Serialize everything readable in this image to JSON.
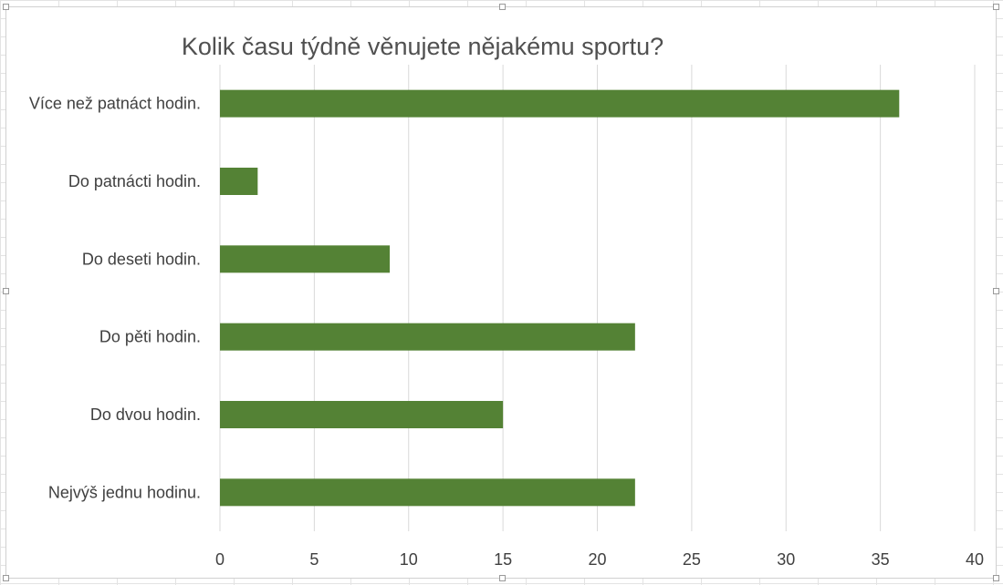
{
  "chart_data": {
    "type": "bar",
    "orientation": "horizontal",
    "title": "Kolik času týdně věnujete nějakému sportu?",
    "categories": [
      "Více než patnáct hodin.",
      "Do patnácti hodin.",
      "Do deseti hodin.",
      "Do pěti hodin.",
      "Do dvou hodin.",
      "Nejvýš jednu hodinu."
    ],
    "values": [
      36,
      2,
      9,
      22,
      15,
      22
    ],
    "xlim": [
      0,
      40
    ],
    "xticks": [
      "0",
      "5",
      "10",
      "15",
      "20",
      "25",
      "30",
      "35",
      "40"
    ],
    "xlabel": "",
    "ylabel": "",
    "bar_color": "#548235",
    "grid": "vertical",
    "legend": "none"
  }
}
